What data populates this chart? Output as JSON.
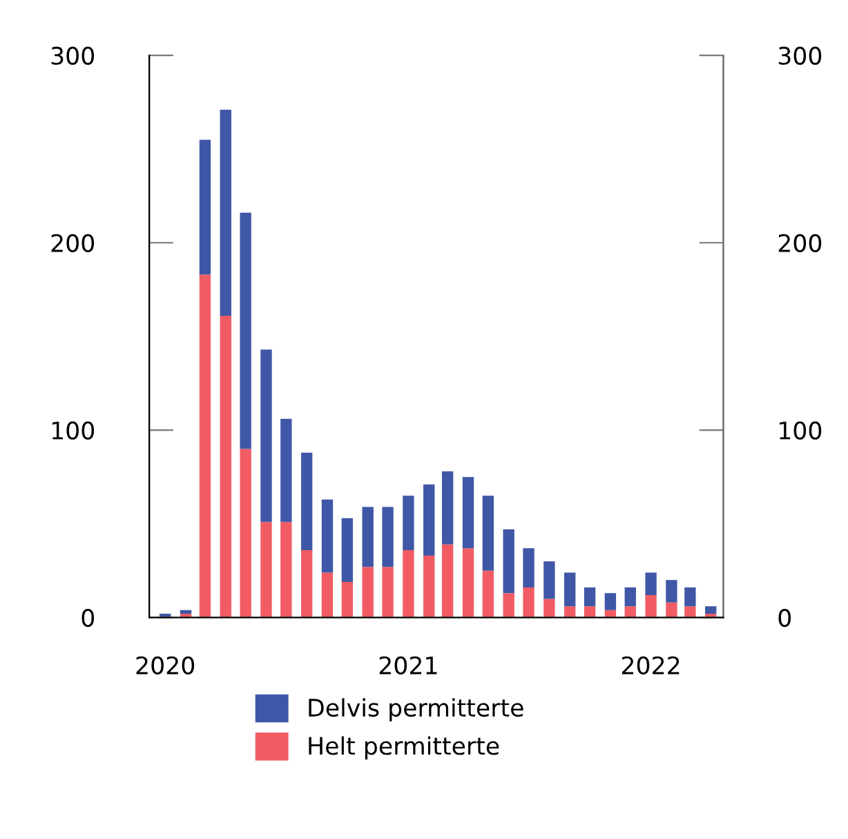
{
  "chart_data": {
    "type": "bar",
    "stacked": true,
    "x": [
      "2020-01",
      "2020-02",
      "2020-03",
      "2020-04",
      "2020-05",
      "2020-06",
      "2020-07",
      "2020-08",
      "2020-09",
      "2020-10",
      "2020-11",
      "2020-12",
      "2021-01",
      "2021-02",
      "2021-03",
      "2021-04",
      "2021-05",
      "2021-06",
      "2021-07",
      "2021-08",
      "2021-09",
      "2021-10",
      "2021-11",
      "2021-12",
      "2022-01",
      "2022-02",
      "2022-03",
      "2022-04"
    ],
    "series": [
      {
        "name": "Helt permitterte",
        "color": "#f15c64",
        "values": [
          0,
          2,
          183,
          161,
          90,
          51,
          51,
          36,
          24,
          19,
          27,
          27,
          36,
          33,
          39,
          37,
          25,
          13,
          16,
          10,
          6,
          6,
          4,
          6,
          12,
          8,
          6,
          2
        ]
      },
      {
        "name": "Delvis permitterte",
        "color": "#3f57a6",
        "values": [
          2,
          2,
          72,
          110,
          126,
          92,
          55,
          52,
          39,
          34,
          32,
          32,
          29,
          38,
          39,
          38,
          40,
          34,
          21,
          20,
          18,
          10,
          9,
          10,
          12,
          12,
          10,
          4
        ]
      }
    ],
    "xlim": [
      "2019-12-08",
      "2022-04-20"
    ],
    "xticks": [
      {
        "value": "2020-01-01",
        "label": "2020"
      },
      {
        "value": "2021-01-01",
        "label": "2021"
      },
      {
        "value": "2022-01-01",
        "label": "2022"
      }
    ],
    "ylim": [
      0,
      300
    ],
    "yticks": [
      0,
      100,
      200,
      300
    ],
    "y2lim": [
      0,
      300
    ],
    "y2ticks": [
      0,
      100,
      200,
      300
    ],
    "grid": false,
    "legend": "bottom"
  }
}
